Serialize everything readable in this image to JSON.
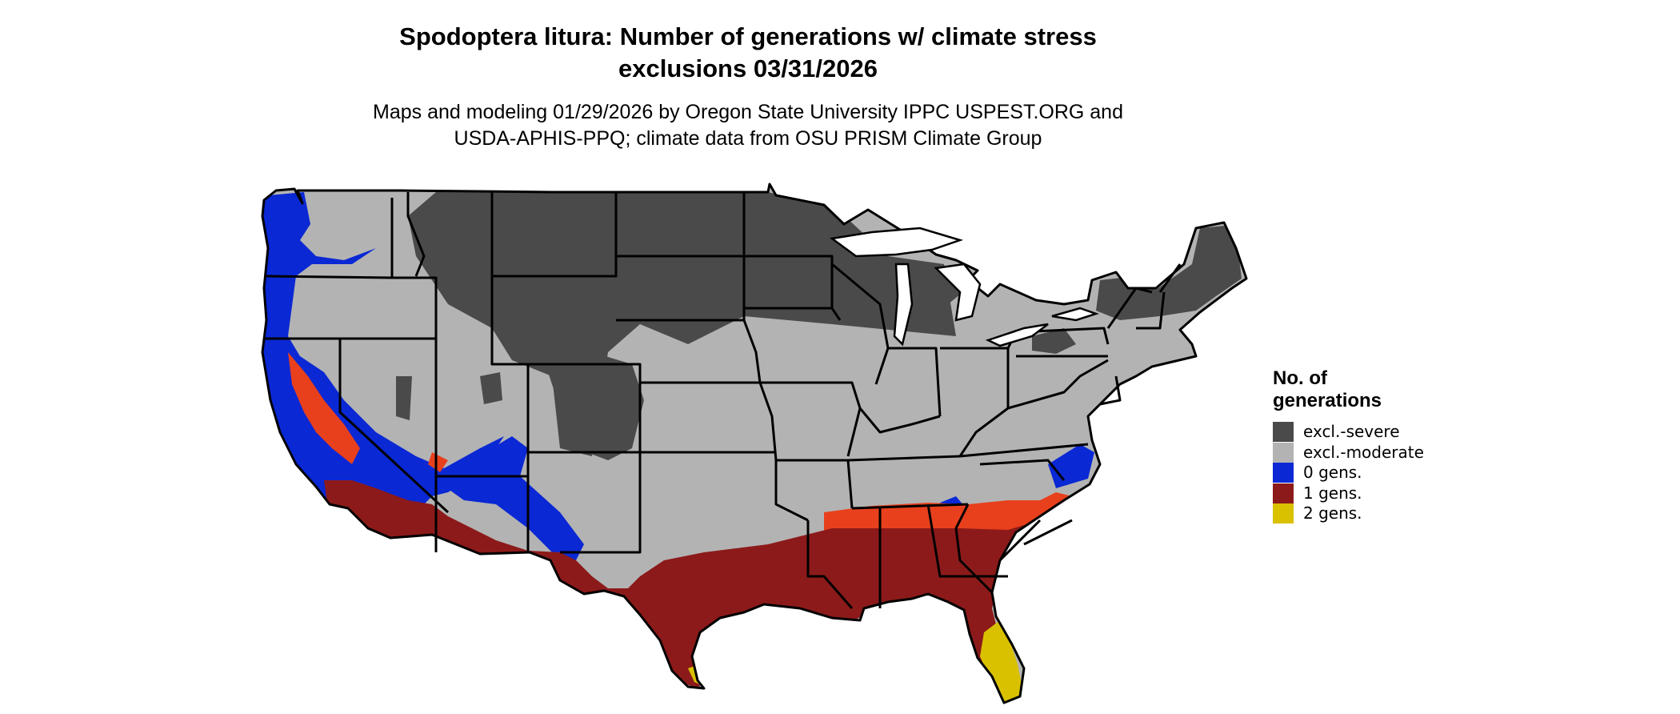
{
  "title": {
    "line1": "Spodoptera litura: Number of generations w/ climate stress",
    "line2": "exclusions 03/31/2026"
  },
  "subtitle": {
    "line1": "Maps and modeling 01/29/2026 by Oregon State University IPPC USPEST.ORG and",
    "line2": "USDA-APHIS-PPQ; climate data from OSU PRISM Climate Group"
  },
  "legend": {
    "title_line1": "No. of",
    "title_line2": "generations",
    "items": [
      {
        "label": "excl.-severe",
        "color": "#4a4a4a"
      },
      {
        "label": "excl.-moderate",
        "color": "#b3b3b3"
      },
      {
        "label": "0 gens.",
        "color": "#0a28d4"
      },
      {
        "label": "1 gens.",
        "color": "#8c1a1a"
      },
      {
        "label": "2 gens.",
        "color": "#d9c100"
      }
    ]
  },
  "colors": {
    "excl_severe": "#4a4a4a",
    "excl_moderate": "#b3b3b3",
    "zero_gens": "#0a28d4",
    "one_gens": "#8c1a1a",
    "one_gens_light": "#e8401c",
    "two_gens": "#d9c100",
    "state_border": "#000000"
  },
  "map": {
    "region": "conterminous-us",
    "projection": "lat-long"
  }
}
